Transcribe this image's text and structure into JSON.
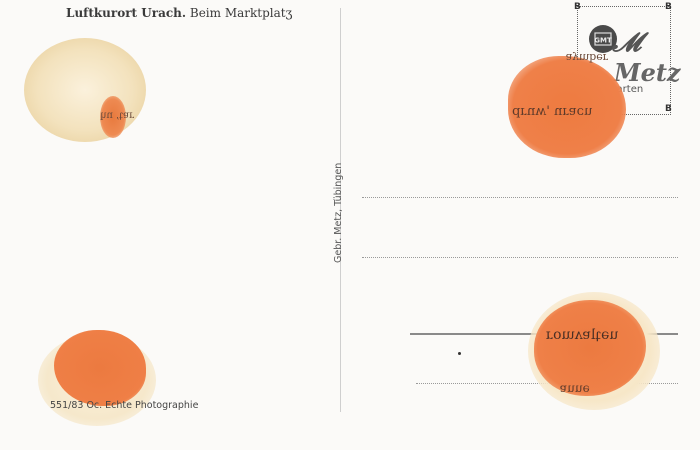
{
  "card": {
    "title_bold": "Luftkurort Urach.",
    "title_rest": "Beim Marktplatʒ",
    "publisher": "Gebr. Metz, Tübingen",
    "caption": "551/83 Oc. Echte Photographie"
  },
  "stamp_box": {
    "corner_left": "B",
    "corner_right": "B",
    "logo_lettering": "GMT",
    "brand_script": "Metz",
    "sub_text": "Postkarten"
  },
  "colors": {
    "paper": "#fbfaf8",
    "stain_orange": "#ec7c44",
    "stain_glue": "#f3e7c9",
    "ink": "#3a3a3a"
  }
}
